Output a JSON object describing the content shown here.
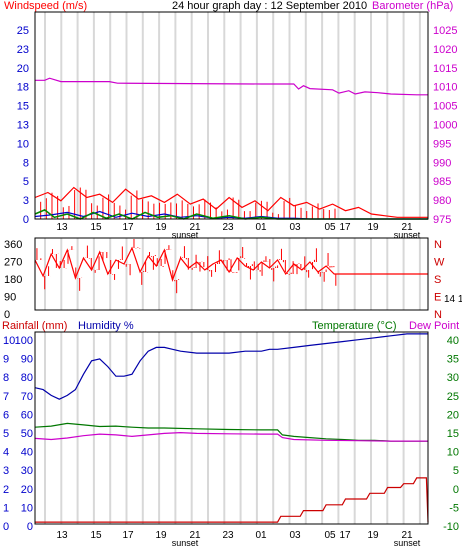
{
  "window": {
    "title": "24 hour graph day : 12 September 2010"
  },
  "colors": {
    "frame": "#000000",
    "grid": "#d8d8d8",
    "wind_speed": "#ff0000",
    "wind_gust_dark": "#aa0000",
    "wind_avg": "#008800",
    "wind_blue": "#0000cc",
    "barometer": "#cc00cc",
    "direction": "#ff0000",
    "rainfall": "#cc0000",
    "humidity": "#0000aa",
    "temperature": "#007700",
    "dew_point": "#cc00cc",
    "left_axis_text": "#0000cc",
    "right_axis_text_baro": "#cc00cc",
    "right_axis_text_temp": "#007700"
  },
  "x_axis": {
    "ticks": [
      "13",
      "15",
      "17",
      "19",
      "21",
      "23",
      "01",
      "03",
      "05",
      "17",
      "19",
      "21"
    ],
    "sunset_label": "sunset"
  },
  "chart_data": [
    {
      "type": "line",
      "title": "24 hour graph day : 12 September 2010",
      "left_label": "Windspeed (m/s)",
      "right_label": "Barometer (hPa)",
      "left_ticks": [
        "25",
        "23",
        "20",
        "18",
        "15",
        "13",
        "10",
        "8",
        "5",
        "3",
        "0"
      ],
      "right_ticks": [
        "1025",
        "1020",
        "1015",
        "1010",
        "1005",
        "1000",
        "995",
        "990",
        "985",
        "980",
        "975"
      ],
      "left_ylim": [
        0,
        25
      ],
      "right_ylim": [
        975,
        1025
      ],
      "series": [
        {
          "key": "barometer",
          "axis": "right",
          "x": [
            0,
            0.6,
            0.9,
            1.6,
            4.6,
            5.1,
            14,
            15,
            16,
            16.3,
            16.6,
            17,
            18.4,
            18.8,
            19.4,
            19.8,
            20.4,
            21.2,
            22,
            23.6,
            24.3
          ],
          "values": [
            1008.5,
            1008.5,
            1009,
            1008.2,
            1008.2,
            1007.8,
            1007.6,
            1007.6,
            1007.6,
            1006.4,
            1007.2,
            1006.5,
            1006.2,
            1005.4,
            1006.0,
            1005.2,
            1005.7,
            1005.5,
            1005.2,
            1005.0,
            1005.0
          ]
        },
        {
          "key": "wind_speed",
          "x": [
            0,
            0.8,
            1.6,
            2.4,
            3.2,
            4,
            4.8,
            5.6,
            6.4,
            7.2,
            8,
            8.8,
            9.6,
            10.4,
            11.2,
            12,
            12.8,
            13.6,
            14.4,
            15.2,
            16,
            16.8,
            17.6,
            18.4,
            19.2,
            20,
            20.8,
            21.6,
            22.4,
            23.2,
            24.3
          ],
          "values": [
            2.6,
            3.2,
            2.2,
            3.8,
            2.6,
            3.0,
            2.0,
            3.6,
            2.4,
            2.8,
            2.0,
            3.0,
            1.8,
            2.4,
            1.2,
            2.6,
            1.4,
            2.2,
            1.0,
            2.6,
            1.6,
            2.0,
            1.2,
            1.8,
            1.0,
            1.4,
            0.6,
            0.4,
            0.2,
            0.2,
            0.2
          ]
        },
        {
          "key": "wind_avg",
          "x": [
            0,
            0.6,
            1.2,
            2,
            2.8,
            3.6,
            4.4,
            5.2,
            6,
            6.8,
            7.6,
            8.4,
            9.2,
            10,
            11,
            12,
            13,
            14,
            15,
            16,
            17,
            18,
            19,
            20,
            21,
            22,
            24.3
          ],
          "values": [
            0.6,
            1.1,
            0.2,
            0.6,
            0.0,
            0.8,
            0.1,
            0.6,
            0.0,
            0.8,
            0.2,
            0.4,
            0.0,
            0.6,
            0.1,
            0.4,
            0.0,
            0.2,
            0.0,
            0.0,
            0.0,
            0.0,
            0.0,
            0.0,
            0.0,
            0.0,
            0.0
          ]
        },
        {
          "key": "wind_blue",
          "x": [
            0,
            1,
            2,
            3,
            4,
            5,
            6,
            7,
            8,
            9,
            10,
            11,
            12,
            13,
            14,
            15,
            16,
            17,
            18,
            24.3
          ],
          "values": [
            0.3,
            0.5,
            0.8,
            0.3,
            0.9,
            0.2,
            0.7,
            0.3,
            0.6,
            0.2,
            0.4,
            0.1,
            0.2,
            0.1,
            0.3,
            0.1,
            0.1,
            0.0,
            0.0,
            0.0
          ]
        }
      ]
    },
    {
      "type": "line",
      "left_ticks": [
        "360",
        "270",
        "180",
        "90",
        "0"
      ],
      "right_ticks": [
        "N",
        "W",
        "S",
        "E",
        "N"
      ],
      "right_note": "14 1",
      "ylim": [
        0,
        360
      ],
      "series": [
        {
          "key": "direction",
          "x": [
            0,
            0.5,
            1,
            1.5,
            2,
            2.5,
            3,
            3.5,
            4,
            4.5,
            5,
            5.5,
            6,
            6.5,
            7,
            7.5,
            8,
            8.5,
            9,
            9.5,
            10,
            10.5,
            11,
            11.5,
            12,
            12.5,
            13,
            13.5,
            14,
            14.5,
            15,
            15.5,
            16,
            16.5,
            17,
            17.5,
            18,
            18.5,
            19,
            24.3
          ],
          "values": [
            250,
            170,
            280,
            210,
            300,
            160,
            260,
            200,
            290,
            180,
            250,
            230,
            310,
            190,
            270,
            220,
            300,
            150,
            260,
            210,
            240,
            200,
            230,
            250,
            190,
            260,
            220,
            200,
            240,
            210,
            250,
            180,
            230,
            200,
            240,
            190,
            220,
            180,
            180,
            180
          ]
        }
      ]
    },
    {
      "type": "line",
      "left_label_rain": "Rainfall (mm)",
      "left_label_humidity": "Humidity %",
      "right_label_temp": "Temperature (°C)",
      "right_label_dew": "Dew Point",
      "rain_ticks": [
        "10",
        "9",
        "8",
        "7",
        "6",
        "5",
        "4",
        "3",
        "2",
        "1",
        "0"
      ],
      "humidity_ticks": [
        "100",
        "90",
        "80",
        "70",
        "60",
        "50",
        "40",
        "30",
        "20",
        "10",
        "0"
      ],
      "temp_ticks": [
        "40",
        "35",
        "30",
        "25",
        "20",
        "15",
        "10",
        "5",
        "0",
        "-5",
        "-10"
      ],
      "humidity_ylim": [
        0,
        100
      ],
      "temp_ylim": [
        -10,
        40
      ],
      "series": [
        {
          "key": "humidity",
          "axis": "humidity",
          "x": [
            0,
            0.5,
            1,
            1.5,
            2,
            2.5,
            3,
            3.5,
            4,
            4.5,
            5,
            5.5,
            6,
            6.5,
            7,
            7.5,
            8,
            8.5,
            9,
            10,
            11,
            12,
            13,
            14,
            14.5,
            15,
            16,
            17,
            18,
            19,
            20,
            21,
            22,
            23,
            24,
            24.3
          ],
          "values": [
            71,
            70,
            67,
            65,
            67,
            70,
            78,
            85,
            86,
            82,
            77,
            77,
            78,
            85,
            90,
            92,
            92,
            91,
            90,
            89,
            89,
            89,
            90,
            90,
            91,
            91,
            92,
            93,
            94,
            95,
            96,
            97,
            98,
            99,
            99,
            99
          ]
        },
        {
          "key": "temperature",
          "axis": "temp",
          "x": [
            0,
            1,
            2,
            3,
            4,
            5,
            6,
            7,
            8,
            10,
            12,
            14,
            15,
            15.3,
            16,
            17,
            18,
            19,
            20,
            21,
            22,
            24.3
          ],
          "values": [
            15.2,
            15.5,
            16.2,
            15.8,
            15.4,
            15.5,
            15.2,
            15.0,
            15.0,
            14.8,
            14.6,
            14.5,
            14.5,
            13.2,
            12.8,
            12.5,
            12.2,
            12.0,
            11.8,
            11.8,
            11.6,
            11.6
          ]
        },
        {
          "key": "dew_point",
          "axis": "temp",
          "x": [
            0,
            1,
            2,
            3,
            4,
            5,
            6,
            7,
            8,
            9,
            10,
            12,
            14,
            15,
            15.3,
            16,
            18,
            20,
            22,
            24.3
          ],
          "values": [
            12.3,
            12.0,
            12.4,
            13.0,
            13.4,
            13.2,
            12.8,
            13.2,
            13.6,
            13.8,
            13.6,
            13.5,
            13.4,
            13.4,
            12.5,
            12.0,
            11.8,
            11.7,
            11.6,
            11.6
          ]
        },
        {
          "key": "rainfall",
          "axis": "rain",
          "x": [
            0,
            15,
            15.2,
            16.4,
            16.6,
            17.8,
            18.0,
            19.0,
            19.2,
            20.5,
            20.7,
            21.6,
            21.8,
            22.6,
            22.8,
            23.4,
            23.6,
            24.0,
            24.2,
            24.3
          ],
          "values": [
            0.1,
            0.1,
            0.4,
            0.4,
            0.7,
            0.7,
            1.0,
            1.0,
            1.3,
            1.3,
            1.6,
            1.6,
            1.9,
            1.9,
            2.1,
            2.1,
            2.4,
            2.4,
            2.4,
            0.1
          ]
        }
      ]
    }
  ]
}
